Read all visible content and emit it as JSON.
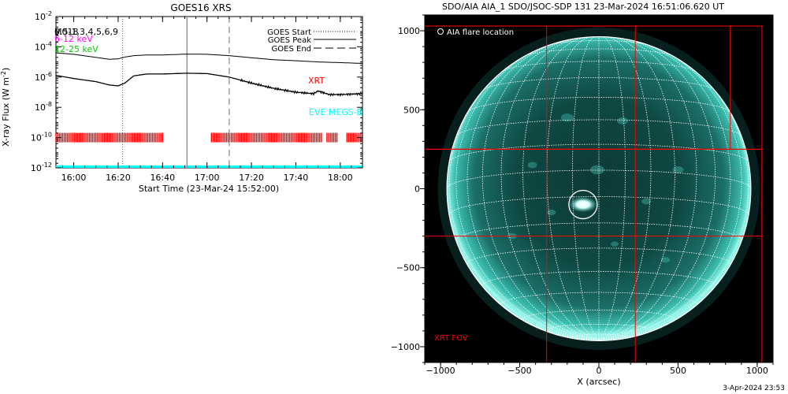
{
  "stamp": "3-Apr-2024 23:53",
  "colors": {
    "background": "#ffffff",
    "ink": "#000000",
    "xrt": "#ff0000",
    "eve": "#00ffff",
    "band1": "#000000",
    "band2": "#ff00ff",
    "band3": "#00ff00",
    "aia_disk": "#2fb7a8"
  },
  "chart_data": [
    {
      "type": "line",
      "title": "GOES16 XRS",
      "xlabel": "Start Time (23-Mar-24 15:52:00)",
      "ylabel": "X-ray Flux (W m-2)",
      "ylabel_parts": {
        "main": "X-ray Flux (W m",
        "sup": "-2",
        "close": ")"
      },
      "y_scale": "log",
      "xlim": [
        "15:52",
        "18:10"
      ],
      "ylim": [
        1e-12,
        0.01
      ],
      "x_ticks": [
        "16:00",
        "16:20",
        "16:40",
        "17:00",
        "17:20",
        "17:40",
        "18:00"
      ],
      "y_ticks": [
        {
          "value": 1e-12,
          "exp": "-12"
        },
        {
          "value": 1e-10,
          "exp": "-10"
        },
        {
          "value": 1e-08,
          "exp": "-8"
        },
        {
          "value": 1e-06,
          "exp": "-6"
        },
        {
          "value": 0.0001,
          "exp": "-4"
        },
        {
          "value": 0.01,
          "exp": "-2"
        }
      ],
      "band_labels": [
        {
          "text": "0.5-1,3,4,5,6,9",
          "color": "#000000"
        },
        {
          "text": "6-12 keV",
          "color": "#ff00ff"
        },
        {
          "text": "12-25 keV",
          "color": "#00ff00"
        }
      ],
      "overlap_label": "M018",
      "legend": {
        "placement": "top-right",
        "entries": [
          "GOES Start",
          "GOES Peak",
          "GOES End"
        ]
      },
      "markers": {
        "goes_start": "16:22",
        "goes_peak": "16:51",
        "goes_end": "17:10"
      },
      "annotations": {
        "xrt": "XRT",
        "eve": "EVE MEGS-B"
      },
      "series": [
        {
          "name": "long channel",
          "x": [
            "15:52",
            "16:00",
            "16:10",
            "16:16",
            "16:20",
            "16:23",
            "16:27",
            "16:33",
            "16:40",
            "16:51",
            "17:00",
            "17:10",
            "17:20",
            "17:30",
            "17:40",
            "17:50",
            "18:00",
            "18:10"
          ],
          "y": [
            4e-05,
            3.2e-05,
            2e-05,
            1.5e-05,
            1.6e-05,
            2.1e-05,
            2.6e-05,
            2.9e-05,
            2.9e-05,
            3.3e-05,
            3.2e-05,
            2.6e-05,
            1.9e-05,
            1.4e-05,
            1.2e-05,
            1e-05,
            9e-06,
            8e-06
          ]
        },
        {
          "name": "short channel",
          "x": [
            "15:52",
            "16:00",
            "16:10",
            "16:16",
            "16:20",
            "16:23",
            "16:27",
            "16:33",
            "16:40",
            "16:51",
            "17:00",
            "17:10",
            "17:20",
            "17:30",
            "17:40",
            "17:48",
            "17:50",
            "17:55",
            "18:00",
            "18:10"
          ],
          "y": [
            1.3e-06,
            8e-07,
            5e-07,
            3e-07,
            2.6e-07,
            4e-07,
            1.2e-06,
            1.6e-06,
            1.6e-06,
            1.8e-06,
            1.7e-06,
            1e-06,
            4e-07,
            1.8e-07,
            1e-07,
            8e-08,
            1.2e-07,
            7e-08,
            7e-08,
            8e-08
          ]
        }
      ],
      "xrt_coverage": [
        [
          "15:52",
          "16:40"
        ],
        [
          "17:02",
          "17:52"
        ],
        [
          "17:54",
          "17:59"
        ],
        [
          "18:03",
          "18:10"
        ]
      ],
      "eve_level": 1e-12
    },
    {
      "type": "scatter",
      "title": "SDO/AIA AIA_1 SDO/JSOC-SDP 131 23-Mar-2024 16:51:06.620 UT",
      "xlabel": "X (arcsec)",
      "ylabel": "",
      "xlim": [
        -1100,
        1100
      ],
      "ylim": [
        -1100,
        1100
      ],
      "x_ticks": [
        -1000,
        -500,
        0,
        500,
        1000
      ],
      "y_ticks": [
        1000,
        500,
        0,
        -500,
        -1000
      ],
      "legend": {
        "placement": "top-left",
        "entries": [
          "AIA flare location"
        ]
      },
      "fov_label": "XRT FOV",
      "solar_radius_arcsec": 960,
      "flare_location": [
        -100,
        -100
      ],
      "xrt_fov_boxes": [
        [
          -1110,
          -1100,
          1030,
          1030
        ],
        [
          -1110,
          -1100,
          1030,
          1030
        ],
        [
          -1110,
          -1100,
          1030,
          1030
        ],
        [
          -1110,
          -1100,
          1030,
          1030
        ],
        [
          -1110,
          -1100,
          1030,
          1030
        ],
        [
          -1110,
          1030,
          1030,
          1030
        ],
        [
          -1110,
          -1100,
          1030,
          1030
        ],
        [
          -1110,
          1030,
          1030,
          1030
        ],
        [
          -1110,
          -1100,
          1030,
          1030
        ],
        [
          -1110,
          -1100,
          1030,
          1030
        ]
      ]
    }
  ]
}
